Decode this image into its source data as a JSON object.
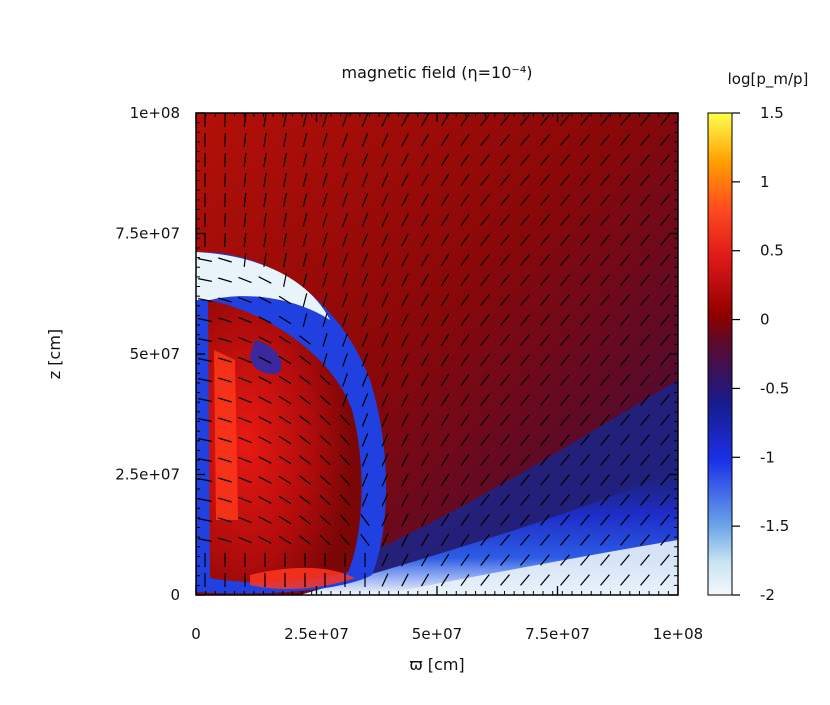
{
  "chart_data": {
    "type": "heatmap",
    "title": "magnetic field (η=10⁻⁴)",
    "xlabel": "ϖ [cm]",
    "ylabel": "z [cm]",
    "xlim": [
      0,
      100000000
    ],
    "ylim": [
      0,
      100000000
    ],
    "x_ticks": [
      {
        "value": 0,
        "label": "0"
      },
      {
        "value": 25000000,
        "label": "2.5e+07"
      },
      {
        "value": 50000000,
        "label": "5e+07"
      },
      {
        "value": 75000000,
        "label": "7.5e+07"
      },
      {
        "value": 100000000,
        "label": "1e+08"
      }
    ],
    "y_ticks": [
      {
        "value": 0,
        "label": "0"
      },
      {
        "value": 25000000,
        "label": "2.5e+07"
      },
      {
        "value": 50000000,
        "label": "5e+07"
      },
      {
        "value": 75000000,
        "label": "7.5e+07"
      },
      {
        "value": 100000000,
        "label": "1e+08"
      }
    ],
    "colorbar": {
      "label": "log[p_m/p]",
      "range": [
        -2,
        1.5
      ],
      "ticks": [
        {
          "value": 1.5,
          "label": "1.5"
        },
        {
          "value": 1,
          "label": "1"
        },
        {
          "value": 0.5,
          "label": "0.5"
        },
        {
          "value": 0,
          "label": "0"
        },
        {
          "value": -0.5,
          "label": "-0.5"
        },
        {
          "value": -1,
          "label": "-1"
        },
        {
          "value": -1.5,
          "label": "-1.5"
        },
        {
          "value": -2,
          "label": "-2"
        }
      ],
      "colors": [
        "#f2f8fc",
        "#8fc3e8",
        "#1a32e6",
        "#1a1a78",
        "#6e0000",
        "#d81010",
        "#ff5020",
        "#ffb000",
        "#ffff40"
      ]
    },
    "overlay": "magnetic field direction vectors",
    "grid": false
  }
}
